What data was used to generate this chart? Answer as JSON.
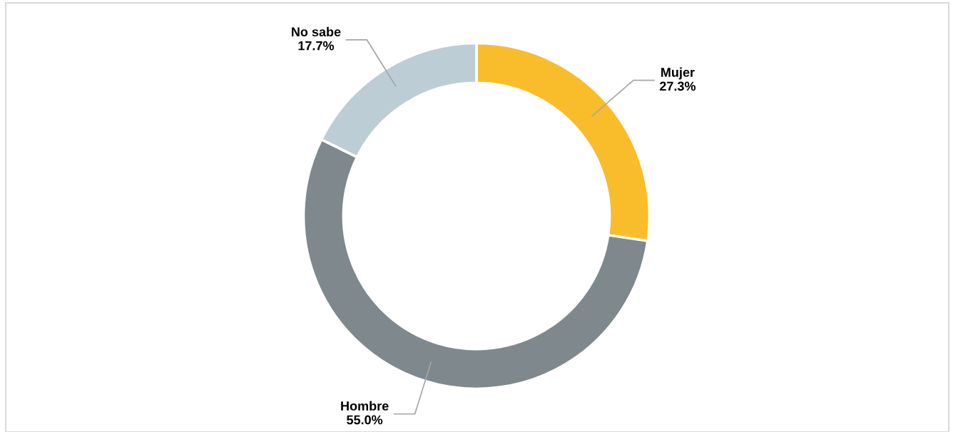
{
  "chart_data": {
    "type": "donut",
    "categories": [
      "Mujer",
      "Hombre",
      "No sabe"
    ],
    "values": [
      27.3,
      55.0,
      17.7
    ],
    "colors": [
      "#f9bc2a",
      "#7f888c",
      "#bdcdd5"
    ],
    "value_labels": [
      "27.3%",
      "55.0%",
      "17.7%"
    ],
    "legend": false
  }
}
